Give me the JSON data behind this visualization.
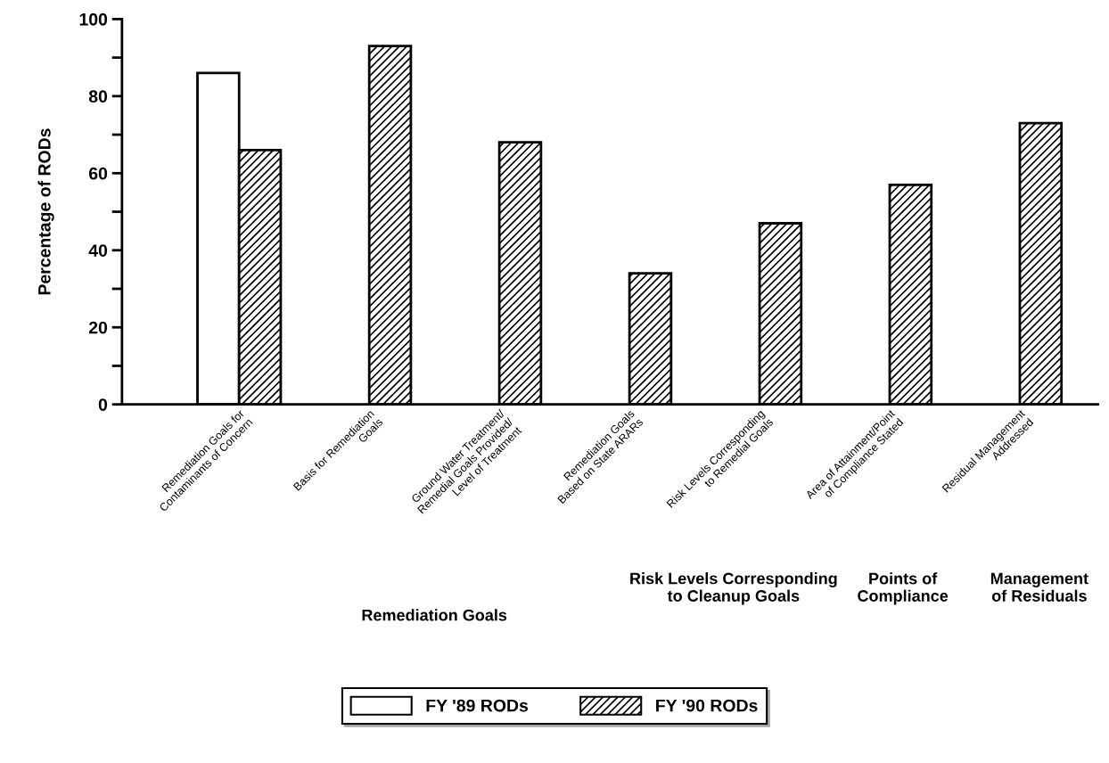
{
  "chart_data": {
    "type": "bar",
    "ylabel": "Percentage of RODs",
    "categories": [
      "Remediation Goals for\nContaminants of Concern",
      "Basis for Remediation\nGoals",
      "Ground Water Treatment/\nRemedial Goals Provided/\nLevel of Treatment",
      "Remediation Goals\nBased on State ARARs",
      "Risk Levels Corresponding\nto Remedial Goals",
      "Area of Attainment/Point\nof Compliance Stated",
      "Residual Management\nAddressed"
    ],
    "series": [
      {
        "name": "FY '89 RODs",
        "color": "#ffffff",
        "values": [
          86,
          null,
          null,
          null,
          null,
          null,
          null
        ]
      },
      {
        "name": "FY '90 RODs",
        "color": "#000000",
        "values": [
          66,
          93,
          68,
          34,
          47,
          57,
          73
        ]
      }
    ],
    "ylim": [
      0,
      100
    ],
    "yticks": [
      0,
      {
        "value": 10,
        "label": null
      },
      20,
      {
        "value": 30,
        "label": null
      },
      40,
      {
        "value": 50,
        "label": null
      },
      60,
      {
        "value": 70,
        "label": null
      },
      80,
      {
        "value": 90,
        "label": null
      },
      100
    ],
    "annotations": [
      "Remediation Goals",
      "Risk Levels Corresponding\nto Cleanup Goals",
      "Points of\nCompliance",
      "Management\nof Residuals"
    ],
    "legend": "bottom",
    "grid": false
  }
}
